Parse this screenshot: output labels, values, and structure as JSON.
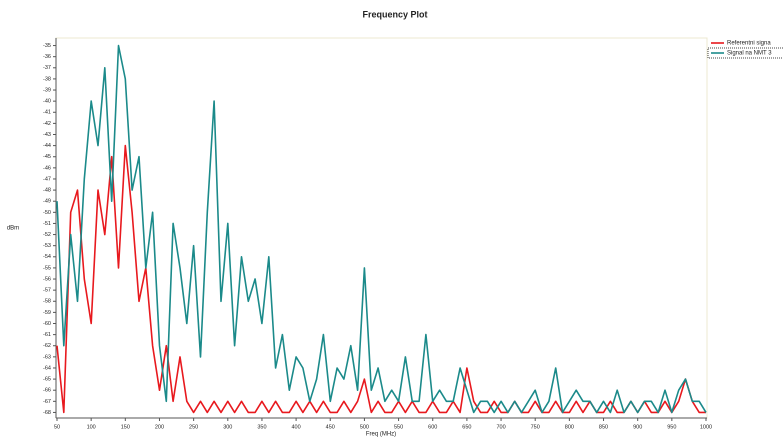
{
  "chart_data": {
    "type": "line",
    "title": "Frequency Plot",
    "x_label": "Freq (MHz)",
    "y_label": "dBm",
    "x": [
      50,
      60,
      70,
      80,
      90,
      100,
      110,
      120,
      130,
      140,
      150,
      160,
      170,
      180,
      190,
      200,
      210,
      220,
      230,
      240,
      250,
      260,
      270,
      280,
      290,
      300,
      310,
      320,
      330,
      340,
      350,
      360,
      370,
      380,
      390,
      400,
      410,
      420,
      430,
      440,
      450,
      460,
      470,
      480,
      490,
      500,
      510,
      520,
      530,
      540,
      550,
      560,
      570,
      580,
      590,
      600,
      610,
      620,
      630,
      640,
      650,
      660,
      670,
      680,
      690,
      700,
      710,
      720,
      730,
      740,
      750,
      760,
      770,
      780,
      790,
      800,
      810,
      820,
      830,
      840,
      850,
      860,
      870,
      880,
      890,
      900,
      910,
      920,
      930,
      940,
      950,
      960,
      970,
      980,
      990,
      1000
    ],
    "series": [
      {
        "name": "Referentni signa",
        "color": "#e8191e",
        "values": [
          -62,
          -68,
          -50,
          -48,
          -56,
          -60,
          -48,
          -52,
          -45,
          -55,
          -44,
          -50,
          -58,
          -55,
          -62,
          -66,
          -62,
          -67,
          -63,
          -67,
          -68,
          -67,
          -68,
          -67,
          -68,
          -67,
          -68,
          -67,
          -68,
          -68,
          -67,
          -68,
          -67,
          -68,
          -68,
          -67,
          -68,
          -67,
          -68,
          -67,
          -68,
          -68,
          -67,
          -68,
          -67,
          -65,
          -68,
          -67,
          -68,
          -68,
          -67,
          -68,
          -67,
          -68,
          -68,
          -67,
          -68,
          -68,
          -67,
          -68,
          -64,
          -67,
          -68,
          -68,
          -67,
          -68,
          -68,
          -67,
          -68,
          -68,
          -67,
          -68,
          -68,
          -67,
          -68,
          -68,
          -67,
          -68,
          -67,
          -68,
          -68,
          -67,
          -68,
          -68,
          -67,
          -68,
          -67,
          -68,
          -68,
          -67,
          -68,
          -67,
          -65,
          -67,
          -68,
          -68
        ]
      },
      {
        "name": "Signal na NMT 3",
        "color": "#1b8a8a",
        "values": [
          -49,
          -62,
          -52,
          -58,
          -47,
          -40,
          -44,
          -37,
          -49,
          -35,
          -38,
          -48,
          -45,
          -55,
          -50,
          -62,
          -67,
          -51,
          -55,
          -60,
          -53,
          -63,
          -50,
          -40,
          -58,
          -51,
          -62,
          -54,
          -58,
          -56,
          -60,
          -54,
          -64,
          -61,
          -66,
          -63,
          -64,
          -67,
          -65,
          -61,
          -67,
          -64,
          -65,
          -62,
          -66,
          -55,
          -66,
          -64,
          -67,
          -66,
          -67,
          -63,
          -67,
          -67,
          -61,
          -67,
          -66,
          -67,
          -67,
          -64,
          -66,
          -68,
          -67,
          -67,
          -68,
          -67,
          -68,
          -67,
          -68,
          -67,
          -66,
          -68,
          -67,
          -64,
          -68,
          -67,
          -66,
          -67,
          -67,
          -68,
          -67,
          -68,
          -66,
          -68,
          -67,
          -68,
          -67,
          -67,
          -68,
          -66,
          -68,
          -66,
          -65,
          -67,
          -67,
          -68
        ]
      }
    ],
    "xlim": [
      50,
      1000
    ],
    "ylim": [
      -34.5,
      -68.5
    ],
    "xticks": [
      50,
      100,
      150,
      200,
      250,
      300,
      350,
      400,
      450,
      500,
      550,
      600,
      650,
      700,
      750,
      800,
      850,
      900,
      950,
      1000
    ],
    "yticks": [
      -35,
      -36,
      -37,
      -38,
      -39,
      -40,
      -41,
      -42,
      -43,
      -44,
      -45,
      -46,
      -47,
      -48,
      -49,
      -50,
      -51,
      -52,
      -53,
      -54,
      -55,
      -56,
      -57,
      -58,
      -59,
      -60,
      -61,
      -62,
      -63,
      -64,
      -65,
      -66,
      -67,
      -68
    ],
    "grid": false,
    "legend": "top-right"
  }
}
